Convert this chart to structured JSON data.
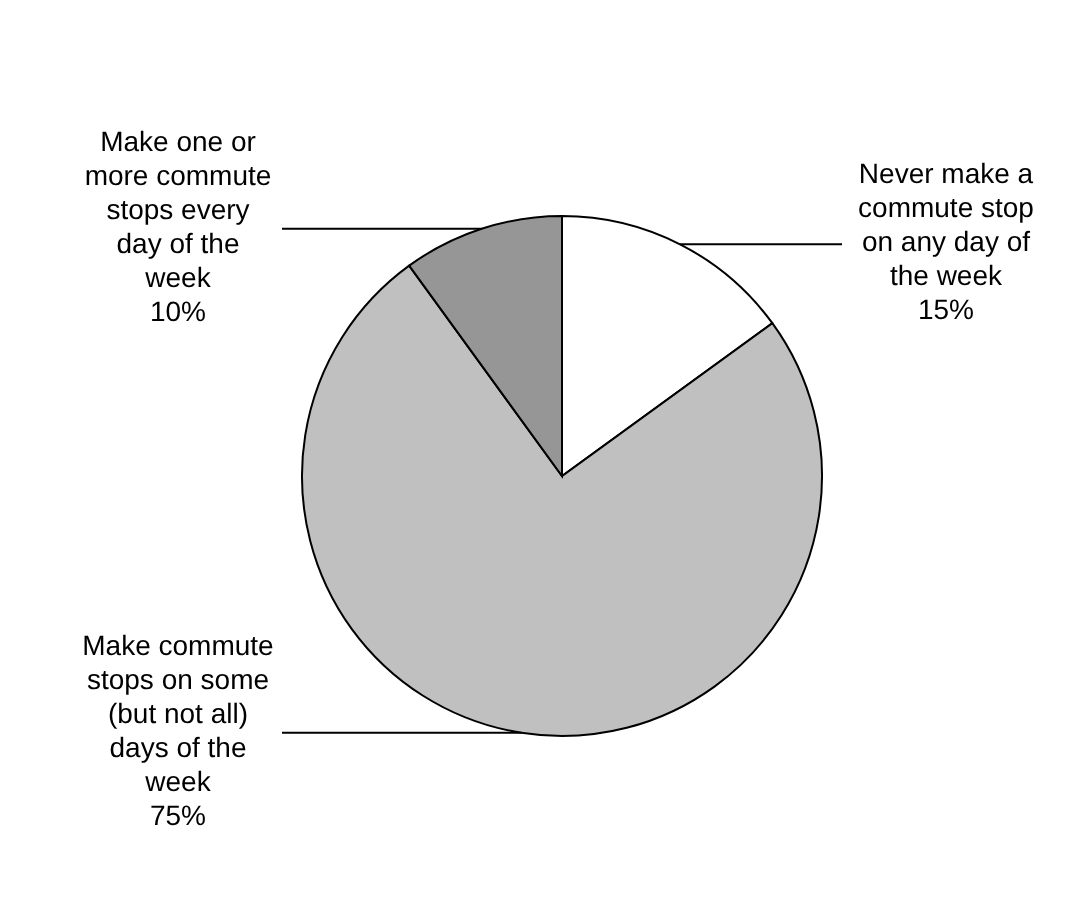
{
  "chart_data": {
    "type": "pie",
    "categories": [
      "Never make a commute stop on any day of the week",
      "Make commute stops on some (but not all) days of the week",
      "Make one or more commute stops every day of the week"
    ],
    "values": [
      15,
      75,
      10
    ],
    "colors": [
      "#ffffff",
      "#c0c0c0",
      "#969696"
    ],
    "value_labels": [
      "15%",
      "75%",
      "10%"
    ]
  }
}
